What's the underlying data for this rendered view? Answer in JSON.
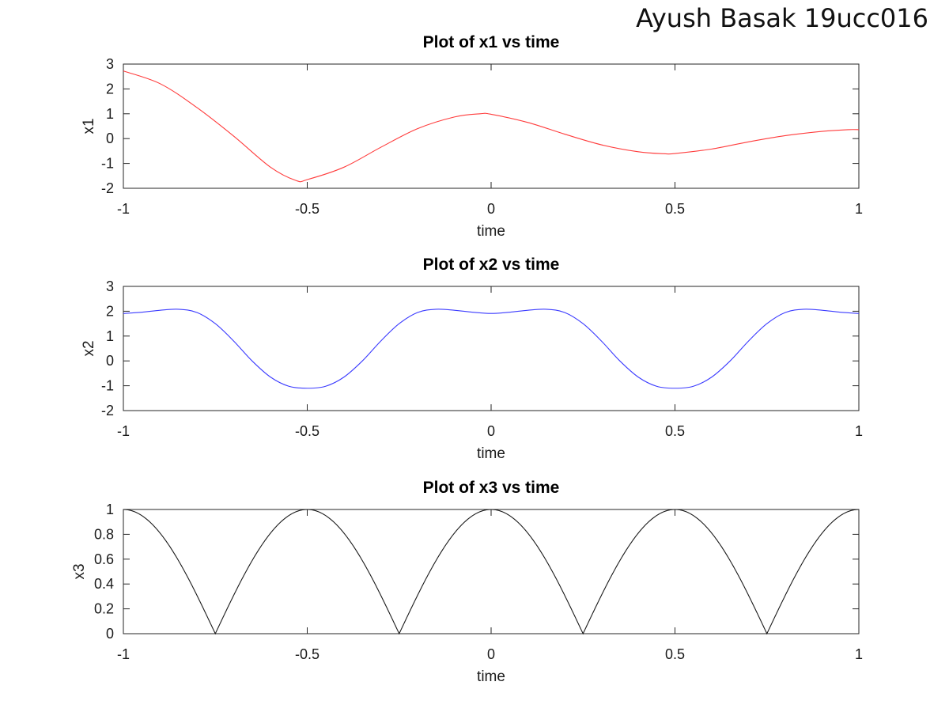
{
  "watermark": "Ayush Basak 19ucc016",
  "chart_data": [
    {
      "type": "line",
      "title": "Plot of x1 vs time",
      "xlabel": "time",
      "ylabel": "x1",
      "xlim": [
        -1,
        1
      ],
      "ylim": [
        -2,
        3
      ],
      "xticks": [
        "-1",
        "-0.5",
        "0",
        "0.5",
        "1"
      ],
      "yticks": [
        "-2",
        "-1",
        "0",
        "1",
        "2",
        "3"
      ],
      "grid": false,
      "series": [
        {
          "color": "#ff3b3b",
          "x": [
            -1,
            -0.9,
            -0.8,
            -0.7,
            -0.6,
            -0.53,
            -0.5,
            -0.4,
            -0.3,
            -0.2,
            -0.1,
            -0.03,
            0,
            0.1,
            0.2,
            0.3,
            0.4,
            0.47,
            0.5,
            0.6,
            0.7,
            0.8,
            0.9,
            0.97,
            1
          ],
          "y": [
            2.72,
            2.21,
            1.25,
            0.1,
            -1.15,
            -1.69,
            -1.65,
            -1.15,
            -0.35,
            0.4,
            0.87,
            1.0,
            0.98,
            0.65,
            0.18,
            -0.25,
            -0.53,
            -0.61,
            -0.6,
            -0.42,
            -0.13,
            0.12,
            0.29,
            0.36,
            0.36
          ]
        }
      ]
    },
    {
      "type": "line",
      "title": "Plot of x2 vs time",
      "xlabel": "time",
      "ylabel": "x2",
      "xlim": [
        -1,
        1
      ],
      "ylim": [
        -2,
        3
      ],
      "xticks": [
        "-1",
        "-0.5",
        "0",
        "0.5",
        "1"
      ],
      "yticks": [
        "-2",
        "-1",
        "0",
        "1",
        "2",
        "3"
      ],
      "grid": false,
      "series": [
        {
          "color": "#3b3bff",
          "x": [
            -1,
            -0.95,
            -0.9,
            -0.85,
            -0.8,
            -0.75,
            -0.7,
            -0.65,
            -0.6,
            -0.55,
            -0.5,
            -0.45,
            -0.4,
            -0.35,
            -0.3,
            -0.25,
            -0.2,
            -0.15,
            -0.1,
            -0.05,
            0,
            0.05,
            0.1,
            0.15,
            0.2,
            0.25,
            0.3,
            0.35,
            0.4,
            0.45,
            0.5,
            0.55,
            0.6,
            0.65,
            0.7,
            0.75,
            0.8,
            0.85,
            0.9,
            0.95,
            1
          ],
          "y": [
            1.91,
            1.96,
            2.04,
            2.08,
            1.95,
            1.5,
            0.8,
            0.0,
            -0.65,
            -1.02,
            -1.1,
            -1.02,
            -0.65,
            0.0,
            0.8,
            1.5,
            1.95,
            2.08,
            2.04,
            1.96,
            1.91,
            1.96,
            2.04,
            2.08,
            1.95,
            1.5,
            0.8,
            0.0,
            -0.65,
            -1.02,
            -1.1,
            -1.02,
            -0.65,
            0.0,
            0.8,
            1.5,
            1.95,
            2.08,
            2.04,
            1.96,
            1.91
          ]
        }
      ]
    },
    {
      "type": "line",
      "title": "Plot of x3 vs time",
      "xlabel": "time",
      "ylabel": "x3",
      "xlim": [
        -1,
        1
      ],
      "ylim": [
        0,
        1
      ],
      "xticks": [
        "-1",
        "-0.5",
        "0",
        "0.5",
        "1"
      ],
      "yticks": [
        "0",
        "0.2",
        "0.4",
        "0.6",
        "0.8",
        "1"
      ],
      "grid": false,
      "series": [
        {
          "color": "#1a1a1a",
          "function": "abs(cos(2*pi*t))",
          "x": [
            -1,
            -0.875,
            -0.75,
            -0.625,
            -0.5,
            -0.375,
            -0.25,
            -0.125,
            0,
            0.125,
            0.25,
            0.375,
            0.5,
            0.625,
            0.75,
            0.875,
            1
          ],
          "y": [
            1,
            0.707,
            0,
            0.707,
            1,
            0.707,
            0,
            0.707,
            1,
            0.707,
            0,
            0.707,
            1,
            0.707,
            0,
            0.707,
            1
          ]
        }
      ]
    }
  ]
}
